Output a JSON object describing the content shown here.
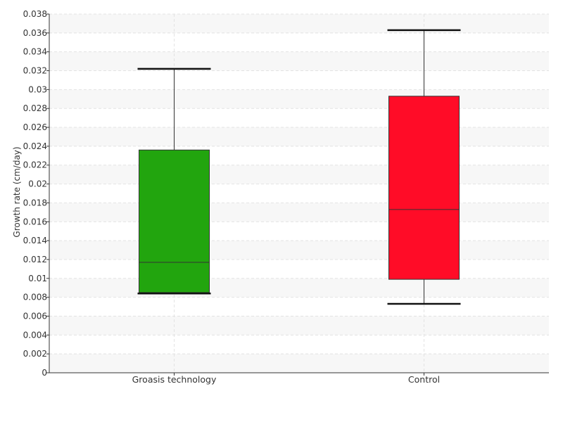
{
  "chart_data": {
    "type": "boxplot",
    "title": "",
    "xlabel": "",
    "ylabel": "Growth rate (cm/day)",
    "ylim": [
      0,
      0.038
    ],
    "y_ticks": [
      "0",
      "0.002",
      "0.004",
      "0.006",
      "0.008",
      "0.01",
      "0.012",
      "0.014",
      "0.016",
      "0.018",
      "0.02",
      "0.022",
      "0.024",
      "0.026",
      "0.028",
      "0.03",
      "0.032",
      "0.034",
      "0.036",
      "0.038"
    ],
    "y_tick_values": [
      0,
      0.002,
      0.004,
      0.006,
      0.008,
      0.01,
      0.012,
      0.014,
      0.016,
      0.018,
      0.02,
      0.022,
      0.024,
      0.026,
      0.028,
      0.03,
      0.032,
      0.034,
      0.036,
      0.038
    ],
    "grid": true,
    "categories": [
      "Groasis technology",
      "Control"
    ],
    "boxes": [
      {
        "min": 0.0084,
        "q1": 0.0085,
        "median": 0.0117,
        "q3": 0.0236,
        "max": 0.0322,
        "color": "#22a50e"
      },
      {
        "min": 0.0073,
        "q1": 0.0099,
        "median": 0.0173,
        "q3": 0.0293,
        "max": 0.0363,
        "color": "#ff0c27"
      }
    ]
  }
}
